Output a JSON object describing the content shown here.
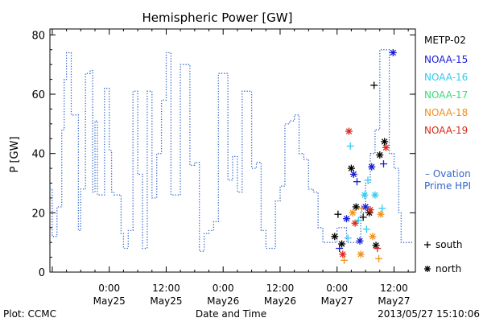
{
  "chart_data": {
    "type": "line",
    "title": "Hemispheric Power [GW]",
    "xlabel": "Date and Time",
    "ylabel": "P [GW]",
    "ylim": [
      0,
      82
    ],
    "yticks": [
      0,
      20,
      40,
      60,
      80
    ],
    "xticks": [
      {
        "t": 12,
        "line1": "0:00",
        "line2": "May25"
      },
      {
        "t": 24,
        "line1": "12:00",
        "line2": "May25"
      },
      {
        "t": 36,
        "line1": "0:00",
        "line2": "May26"
      },
      {
        "t": 48,
        "line1": "12:00",
        "line2": "May26"
      },
      {
        "t": 60,
        "line1": "0:00",
        "line2": "May27"
      },
      {
        "t": 72,
        "line1": "12:00",
        "line2": "May27"
      }
    ],
    "xlim": [
      -0.5,
      76.5
    ],
    "x_units": "hours from 12:00 May24",
    "grid": false,
    "footer_left": "Plot: CCMC",
    "footer_right": "2013/05/27 15:10:06",
    "legend_title": "METP-02",
    "legend": [
      {
        "name": "NOAA-15",
        "color": "#1a1ad9"
      },
      {
        "name": "NOAA-16",
        "color": "#33ccee"
      },
      {
        "name": "NOAA-17",
        "color": "#33e07a"
      },
      {
        "name": "NOAA-18",
        "color": "#f0901a"
      },
      {
        "name": "NOAA-19",
        "color": "#d92a1a"
      }
    ],
    "ovation_label_1": "– Ovation",
    "ovation_label_2": "Prime HPI",
    "ovation_color": "#3366cc",
    "marker_legend": [
      {
        "symbol": "+",
        "label": "south"
      },
      {
        "symbol": "*",
        "label": "north"
      }
    ],
    "ovation_series": {
      "name": "Ovation Prime HPI",
      "x": [
        -0.5,
        0,
        1,
        2,
        2.5,
        3,
        4,
        5,
        5.5,
        6,
        6.5,
        7,
        8,
        8.5,
        9,
        9.5,
        10,
        11,
        12,
        12.5,
        13,
        14,
        14.5,
        15,
        16,
        17,
        18,
        19,
        20,
        21,
        22,
        23,
        24,
        25,
        26,
        27,
        28,
        29,
        30,
        31,
        32,
        33,
        34,
        35,
        36,
        37,
        38,
        39,
        40,
        41,
        42,
        43,
        44,
        45,
        46,
        47,
        48,
        49,
        50,
        51,
        52,
        53,
        54,
        55,
        56,
        57,
        58,
        59,
        60,
        61,
        62,
        63,
        64,
        65,
        66,
        67,
        68,
        69,
        70,
        71,
        72,
        73,
        73.5,
        74,
        74.5,
        75,
        76
      ],
      "y": [
        28,
        12,
        22,
        48,
        65,
        74,
        53,
        53,
        14,
        28,
        28,
        67,
        68,
        27,
        51,
        26,
        26,
        62,
        41,
        27,
        26,
        26,
        13,
        8,
        14,
        61,
        33,
        8,
        61,
        25,
        40,
        58,
        74,
        26,
        26,
        70,
        70,
        36,
        37,
        7,
        13,
        14,
        17,
        67,
        67,
        31,
        39,
        27,
        61,
        61,
        35,
        37,
        14,
        8,
        8,
        24,
        29,
        50,
        51,
        53,
        40,
        38,
        28,
        27,
        15,
        10,
        10,
        10,
        15,
        15,
        10,
        10,
        10,
        20,
        30,
        40,
        48,
        75,
        75,
        40,
        35,
        20,
        10,
        10,
        10,
        10,
        10
      ]
    },
    "satellite_points": [
      {
        "x": 59.5,
        "y": 12,
        "color": "#000000",
        "symbol": "*"
      },
      {
        "x": 60.2,
        "y": 19.5,
        "color": "#000000",
        "symbol": "+"
      },
      {
        "x": 60.5,
        "y": 8,
        "color": "#1a1ad9",
        "symbol": "+"
      },
      {
        "x": 61,
        "y": 9.5,
        "color": "#000000",
        "symbol": "*"
      },
      {
        "x": 61.2,
        "y": 6,
        "color": "#d92a1a",
        "symbol": "*"
      },
      {
        "x": 61.5,
        "y": 4,
        "color": "#f0901a",
        "symbol": "+"
      },
      {
        "x": 62,
        "y": 18,
        "color": "#1a1ad9",
        "symbol": "*"
      },
      {
        "x": 62.3,
        "y": 11.5,
        "color": "#33ccee",
        "symbol": "+"
      },
      {
        "x": 62.5,
        "y": 47.5,
        "color": "#d92a1a",
        "symbol": "*"
      },
      {
        "x": 62.8,
        "y": 42.5,
        "color": "#33ccee",
        "symbol": "+"
      },
      {
        "x": 63,
        "y": 35,
        "color": "#000000",
        "symbol": "*"
      },
      {
        "x": 63.3,
        "y": 20,
        "color": "#f0901a",
        "symbol": "*"
      },
      {
        "x": 63.5,
        "y": 33,
        "color": "#1a1ad9",
        "symbol": "*"
      },
      {
        "x": 63.8,
        "y": 16.5,
        "color": "#d92a1a",
        "symbol": "*"
      },
      {
        "x": 64,
        "y": 22,
        "color": "#000000",
        "symbol": "*"
      },
      {
        "x": 64.2,
        "y": 30.5,
        "color": "#1a1ad9",
        "symbol": "+"
      },
      {
        "x": 64.5,
        "y": 17.5,
        "color": "#33ccee",
        "symbol": "+"
      },
      {
        "x": 64.8,
        "y": 10.5,
        "color": "#1a1ad9",
        "symbol": "*"
      },
      {
        "x": 65,
        "y": 6,
        "color": "#f0901a",
        "symbol": "*"
      },
      {
        "x": 65.2,
        "y": 21.5,
        "color": "#f0901a",
        "symbol": "+"
      },
      {
        "x": 65.5,
        "y": 18.5,
        "color": "#000000",
        "symbol": "+"
      },
      {
        "x": 65.8,
        "y": 26,
        "color": "#33ccee",
        "symbol": "*"
      },
      {
        "x": 66,
        "y": 22,
        "color": "#1a1ad9",
        "symbol": "*"
      },
      {
        "x": 66.2,
        "y": 14.5,
        "color": "#33ccee",
        "symbol": "+"
      },
      {
        "x": 66.5,
        "y": 31,
        "color": "#33ccee",
        "symbol": "+"
      },
      {
        "x": 66.8,
        "y": 20,
        "color": "#000000",
        "symbol": "*"
      },
      {
        "x": 67,
        "y": 21,
        "color": "#d92a1a",
        "symbol": "*"
      },
      {
        "x": 67.3,
        "y": 35.5,
        "color": "#1a1ad9",
        "symbol": "*"
      },
      {
        "x": 67.5,
        "y": 12,
        "color": "#f0901a",
        "symbol": "*"
      },
      {
        "x": 67.8,
        "y": 63,
        "color": "#000000",
        "symbol": "+"
      },
      {
        "x": 68,
        "y": 26,
        "color": "#33ccee",
        "symbol": "*"
      },
      {
        "x": 68.2,
        "y": 9,
        "color": "#000000",
        "symbol": "*"
      },
      {
        "x": 68.5,
        "y": 8,
        "color": "#d92a1a",
        "symbol": "+"
      },
      {
        "x": 68.8,
        "y": 4.5,
        "color": "#f0901a",
        "symbol": "+"
      },
      {
        "x": 69,
        "y": 39.5,
        "color": "#000000",
        "symbol": "*"
      },
      {
        "x": 69.2,
        "y": 19.5,
        "color": "#f0901a",
        "symbol": "*"
      },
      {
        "x": 69.5,
        "y": 21.5,
        "color": "#33ccee",
        "symbol": "+"
      },
      {
        "x": 69.8,
        "y": 36.5,
        "color": "#1a1ad9",
        "symbol": "+"
      },
      {
        "x": 70,
        "y": 44,
        "color": "#000000",
        "symbol": "*"
      },
      {
        "x": 70.3,
        "y": 42,
        "color": "#d92a1a",
        "symbol": "*"
      },
      {
        "x": 71.8,
        "y": 74,
        "color": "#1a1ad9",
        "symbol": "*"
      }
    ]
  }
}
